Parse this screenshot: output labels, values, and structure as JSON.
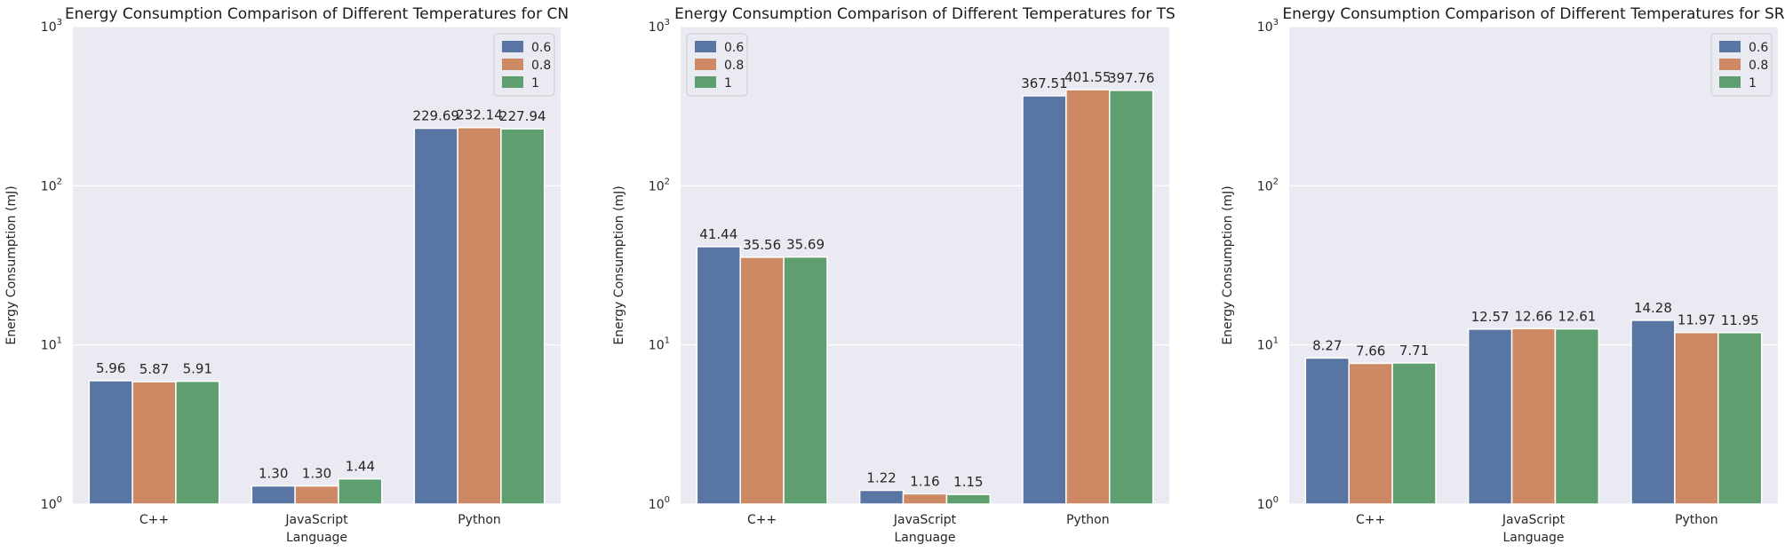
{
  "chart_data": [
    {
      "type": "bar",
      "title": "Energy Consumption Comparison of Different Temperatures for CN",
      "xlabel": "Language",
      "ylabel": "Energy Consumption (mJ)",
      "yscale": "log",
      "ylim": [
        1,
        1000
      ],
      "yticks": [
        "10^0",
        "10^1",
        "10^2",
        "10^3"
      ],
      "categories": [
        "C++",
        "JavaScript",
        "Python"
      ],
      "legend": "top-right",
      "grid": true,
      "series": [
        {
          "name": "0.6",
          "color": "#5875a4",
          "values": [
            5.96,
            1.3,
            229.69
          ],
          "labels": [
            "5.96",
            "1.30",
            "229.69"
          ]
        },
        {
          "name": "0.8",
          "color": "#cc8963",
          "values": [
            5.87,
            1.3,
            232.14
          ],
          "labels": [
            "5.87",
            "1.30",
            "232.14"
          ]
        },
        {
          "name": "1",
          "color": "#5f9e6e",
          "values": [
            5.91,
            1.44,
            227.94
          ],
          "labels": [
            "5.91",
            "1.44",
            "227.94"
          ]
        }
      ]
    },
    {
      "type": "bar",
      "title": "Energy Consumption Comparison of Different Temperatures for TS",
      "xlabel": "Language",
      "ylabel": "Energy Consumption (mJ)",
      "yscale": "log",
      "ylim": [
        1,
        1000
      ],
      "yticks": [
        "10^0",
        "10^1",
        "10^2",
        "10^3"
      ],
      "categories": [
        "C++",
        "JavaScript",
        "Python"
      ],
      "legend": "top-left",
      "grid": true,
      "series": [
        {
          "name": "0.6",
          "color": "#5875a4",
          "values": [
            41.44,
            1.22,
            367.51
          ],
          "labels": [
            "41.44",
            "1.22",
            "367.51"
          ]
        },
        {
          "name": "0.8",
          "color": "#cc8963",
          "values": [
            35.56,
            1.16,
            401.55
          ],
          "labels": [
            "35.56",
            "1.16",
            "401.55"
          ]
        },
        {
          "name": "1",
          "color": "#5f9e6e",
          "values": [
            35.69,
            1.15,
            397.76
          ],
          "labels": [
            "35.69",
            "1.15",
            "397.76"
          ]
        }
      ]
    },
    {
      "type": "bar",
      "title": "Energy Consumption Comparison of Different Temperatures for SR",
      "xlabel": "Language",
      "ylabel": "Energy Consumption (mJ)",
      "yscale": "log",
      "ylim": [
        1,
        1000
      ],
      "yticks": [
        "10^0",
        "10^1",
        "10^2",
        "10^3"
      ],
      "categories": [
        "C++",
        "JavaScript",
        "Python"
      ],
      "legend": "top-right",
      "grid": true,
      "series": [
        {
          "name": "0.6",
          "color": "#5875a4",
          "values": [
            8.27,
            12.57,
            14.28
          ],
          "labels": [
            "8.27",
            "12.57",
            "14.28"
          ]
        },
        {
          "name": "0.8",
          "color": "#cc8963",
          "values": [
            7.66,
            12.66,
            11.97
          ],
          "labels": [
            "7.66",
            "12.66",
            "11.97"
          ]
        },
        {
          "name": "1",
          "color": "#5f9e6e",
          "values": [
            7.71,
            12.61,
            11.95
          ],
          "labels": [
            "7.71",
            "12.61",
            "11.95"
          ]
        }
      ]
    }
  ]
}
